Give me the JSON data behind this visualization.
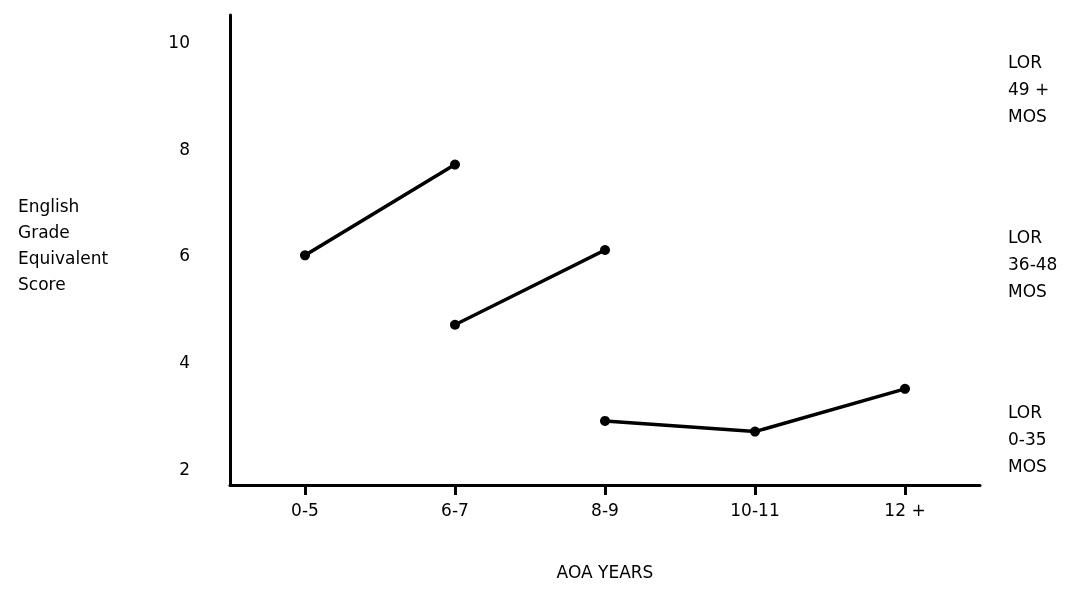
{
  "chart_data": {
    "type": "line",
    "xlabel": "AOA YEARS",
    "ylabel": "English\nGrade\nEquivalent\nScore",
    "categories": [
      "0-5",
      "6-7",
      "8-9",
      "10-11",
      "12 +"
    ],
    "series": [
      {
        "name": "LOR\n49 +\nMOS",
        "color": "#000000",
        "values": [
          6.0,
          7.7,
          null,
          null,
          null
        ]
      },
      {
        "name": "LOR\n36-48\nMOS",
        "color": "#000000",
        "values": [
          null,
          4.7,
          6.1,
          null,
          null
        ]
      },
      {
        "name": "LOR\n0-35\nMOS",
        "color": "#000000",
        "values": [
          null,
          null,
          2.9,
          2.7,
          3.5
        ]
      }
    ],
    "ylim": [
      1.7,
      10.5
    ],
    "yticks": [
      2,
      4,
      6,
      8,
      10
    ],
    "grid": false,
    "legend": false,
    "marker": "circle",
    "line_style": "solid"
  }
}
